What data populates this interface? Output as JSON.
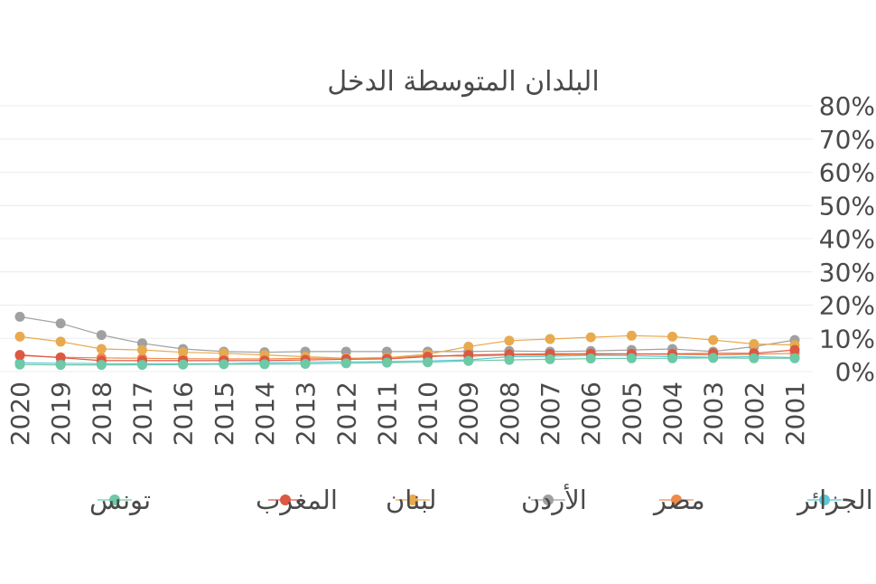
{
  "chart_data": {
    "type": "line",
    "title": "البلدان المتوسطة الدخل",
    "xlabel": "",
    "ylabel": "",
    "x": [
      "2001",
      "2002",
      "2003",
      "2004",
      "2005",
      "2006",
      "2007",
      "2008",
      "2009",
      "2010",
      "2011",
      "2012",
      "2013",
      "2014",
      "2015",
      "2016",
      "2017",
      "2018",
      "2019",
      "2020"
    ],
    "x_axis_reversed": true,
    "ylim": [
      0,
      80
    ],
    "y_ticks": [
      0,
      10,
      20,
      30,
      40,
      50,
      60,
      70,
      80
    ],
    "y_tick_labels": [
      "0%",
      "10%",
      "20%",
      "30%",
      "40%",
      "50%",
      "60%",
      "70%",
      "80%"
    ],
    "y_axis_position": "right",
    "grid": true,
    "legend_position": "bottom",
    "series": [
      {
        "name": "الجزائر",
        "color": "#5bc8d8",
        "values": [
          4.2,
          4.5,
          4.3,
          4.5,
          4.8,
          4.9,
          4.6,
          4.5,
          3.5,
          3.2,
          3.0,
          2.9,
          2.8,
          2.6,
          2.4,
          2.3,
          2.3,
          2.4,
          2.5,
          2.6
        ]
      },
      {
        "name": "مصر",
        "color": "#f08a4b",
        "values": [
          5.5,
          5.2,
          5.0,
          5.2,
          5.3,
          5.2,
          5.0,
          5.0,
          4.6,
          4.8,
          4.2,
          4.0,
          4.0,
          3.8,
          3.8,
          3.9,
          4.0,
          4.1,
          4.3,
          4.8
        ]
      },
      {
        "name": "الأردن",
        "color": "#a0a0a0",
        "values": [
          9.5,
          7.5,
          6.0,
          6.8,
          6.5,
          6.2,
          6.0,
          6.2,
          6.0,
          6.0,
          6.0,
          6.0,
          6.0,
          5.8,
          6.0,
          6.8,
          8.5,
          11.0,
          14.5,
          16.5
        ]
      },
      {
        "name": "لبنان",
        "color": "#e8aa4e",
        "values": [
          8.0,
          8.3,
          9.5,
          10.5,
          10.8,
          10.3,
          9.8,
          9.3,
          7.5,
          5.2,
          4.2,
          4.0,
          4.5,
          5.0,
          5.5,
          5.8,
          6.5,
          6.8,
          9.0,
          10.5
        ]
      },
      {
        "name": "المغرب",
        "color": "#dc5842",
        "values": [
          6.5,
          5.5,
          5.5,
          5.3,
          5.3,
          5.4,
          5.3,
          5.2,
          5.0,
          4.5,
          3.8,
          3.7,
          3.5,
          3.3,
          3.3,
          3.3,
          3.3,
          3.3,
          4.2,
          5.0
        ]
      },
      {
        "name": "تونس",
        "color": "#6dc9a6",
        "values": [
          4.0,
          4.0,
          4.1,
          4.0,
          4.0,
          3.9,
          3.7,
          3.5,
          3.2,
          2.8,
          2.7,
          2.5,
          2.3,
          2.2,
          2.2,
          2.1,
          2.0,
          2.0,
          2.0,
          2.1
        ]
      }
    ]
  }
}
